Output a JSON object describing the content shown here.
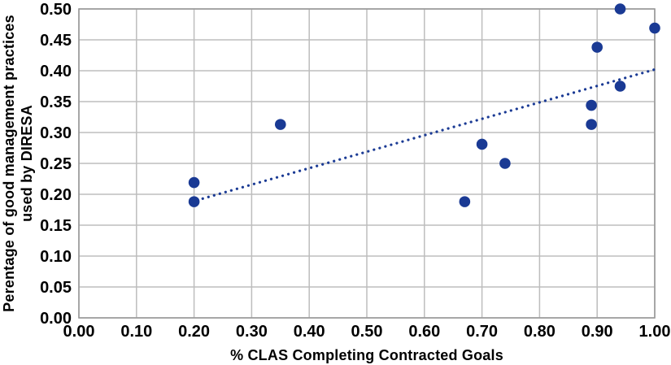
{
  "chart_data": {
    "type": "scatter",
    "title": "",
    "xlabel": "% CLAS Completing Contracted Goals",
    "ylabel": "Perentage of good management practices used by DIRESA",
    "ylabel_lines": [
      "Perentage of good management practices",
      "used by DIRESA"
    ],
    "xlim": [
      0.0,
      1.0
    ],
    "ylim": [
      0.0,
      0.5
    ],
    "x_ticks": [
      "0.00",
      "0.10",
      "0.20",
      "0.30",
      "0.40",
      "0.50",
      "0.60",
      "0.70",
      "0.80",
      "0.90",
      "1.00"
    ],
    "y_ticks": [
      "0.50",
      "0.45",
      "0.40",
      "0.35",
      "0.30",
      "0.25",
      "0.20",
      "0.15",
      "0.10",
      "0.05",
      "0.00"
    ],
    "grid": true,
    "legend": false,
    "points": [
      {
        "x": 0.2,
        "y": 0.219
      },
      {
        "x": 0.2,
        "y": 0.188
      },
      {
        "x": 0.35,
        "y": 0.313
      },
      {
        "x": 0.67,
        "y": 0.188
      },
      {
        "x": 0.7,
        "y": 0.281
      },
      {
        "x": 0.74,
        "y": 0.25
      },
      {
        "x": 0.89,
        "y": 0.313
      },
      {
        "x": 0.89,
        "y": 0.344
      },
      {
        "x": 0.9,
        "y": 0.438
      },
      {
        "x": 0.94,
        "y": 0.375
      },
      {
        "x": 0.94,
        "y": 0.5
      },
      {
        "x": 1.0,
        "y": 0.469
      }
    ],
    "trendline": {
      "type": "linear",
      "style": "dotted",
      "from": {
        "x": 0.215,
        "y": 0.193
      },
      "to": {
        "x": 1.0,
        "y": 0.402
      }
    },
    "colors": {
      "marker": "#1a3a94",
      "trendline": "#1a3a94",
      "gridline": "#bdbdbd",
      "plot_border": "#999999",
      "text": "#000000",
      "background": "#ffffff"
    }
  }
}
